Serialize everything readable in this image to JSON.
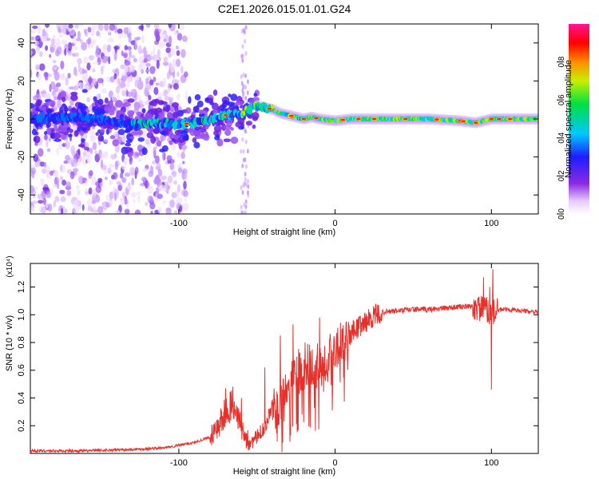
{
  "title": "C2E1.2026.015.01.01.G24",
  "colors": {
    "snr_line": "#e8302b",
    "background": "#ffffff"
  },
  "chart_data": [
    {
      "type": "heatmap",
      "name": "spectrogram",
      "xlabel": "Height of straight line (km)",
      "ylabel": "Frequency (Hz)",
      "xlim": [
        -195,
        130
      ],
      "ylim": [
        -50,
        50
      ],
      "xticks": [
        -100,
        0,
        100
      ],
      "yticks": [
        -40,
        -20,
        0,
        20,
        40
      ],
      "colorbar": {
        "label": "Normalized spectral amplitude",
        "range": [
          0,
          1
        ],
        "ticks": [
          "0.0",
          "0.2",
          "0.4",
          "0.6",
          "0.8"
        ],
        "tick_values": [
          0.0,
          0.2,
          0.4,
          0.6,
          0.8
        ],
        "colormap": "rainbow (white → violet → blue → cyan → green → yellow → red → magenta)"
      },
      "ridge": {
        "description": "Dominant frequency band vs height",
        "x": [
          -195,
          -170,
          -150,
          -130,
          -115,
          -100,
          -90,
          -80,
          -70,
          -60,
          -55,
          -50,
          -45,
          -40,
          -35,
          -30,
          -25,
          -20,
          -15,
          -10,
          0,
          10,
          30,
          60,
          80,
          90,
          100,
          130
        ],
        "y": [
          0,
          1,
          0,
          -3,
          -2,
          -3,
          -2,
          0,
          2,
          3,
          5,
          7,
          6,
          5,
          3,
          2,
          1,
          0,
          1,
          0,
          -1,
          0,
          0,
          0,
          -1,
          -2,
          0,
          0
        ]
      }
    },
    {
      "type": "line",
      "name": "snr",
      "xlabel": "Height of straight line (km)",
      "ylabel": "SNR (10 * v/v)",
      "y_multiplier": "(x10⁴)",
      "xlim": [
        -195,
        130
      ],
      "ylim": [
        0,
        1.37
      ],
      "xticks": [
        -100,
        0,
        100
      ],
      "yticks": [
        0.2,
        0.4,
        0.6,
        0.8,
        1.0,
        1.2
      ],
      "ytick_labels": [
        "0.2",
        "0.4",
        "0.6",
        "0.8",
        "1.0",
        "1.2"
      ],
      "series": [
        {
          "name": "SNR",
          "envelope_x": [
            -195,
            -160,
            -130,
            -110,
            -100,
            -90,
            -80,
            -75,
            -70,
            -65,
            -60,
            -55,
            -50,
            -45,
            -40,
            -35,
            -30,
            -25,
            -20,
            -15,
            -10,
            -5,
            0,
            5,
            10,
            15,
            20,
            25,
            30,
            40,
            50,
            60,
            70,
            80,
            90,
            95,
            98,
            100,
            102,
            105,
            110,
            120,
            130
          ],
          "envelope_y": [
            0.02,
            0.02,
            0.03,
            0.04,
            0.06,
            0.08,
            0.12,
            0.2,
            0.25,
            0.33,
            0.18,
            0.08,
            0.12,
            0.2,
            0.35,
            0.4,
            0.55,
            0.6,
            0.65,
            0.62,
            0.65,
            0.7,
            0.78,
            0.85,
            0.88,
            0.92,
            0.96,
            1.0,
            1.02,
            1.03,
            1.04,
            1.04,
            1.05,
            1.06,
            1.06,
            1.05,
            1.04,
            1.02,
            1.03,
            1.04,
            1.04,
            1.03,
            1.02
          ],
          "spikes": [
            {
              "x": -70,
              "y": 0.47
            },
            {
              "x": -60,
              "y": 0.4
            },
            {
              "x": -45,
              "y": 0.62
            },
            {
              "x": -35,
              "y": 0.85
            },
            {
              "x": -27,
              "y": 0.93
            },
            {
              "x": -10,
              "y": 0.98
            },
            {
              "x": 95,
              "y": 1.27
            },
            {
              "x": 99,
              "y": 1.2
            },
            {
              "x": 101,
              "y": 1.33
            },
            {
              "x": 100,
              "y": 0.46
            }
          ]
        }
      ]
    }
  ]
}
